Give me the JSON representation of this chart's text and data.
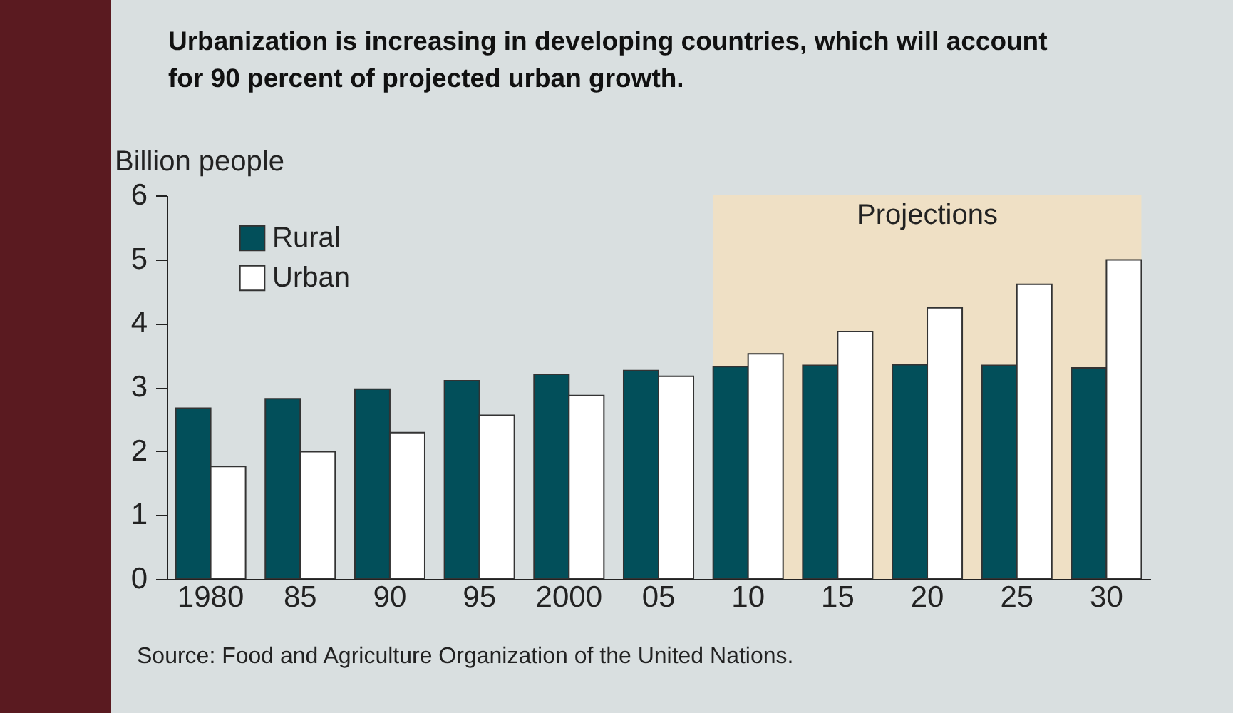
{
  "chart_data": {
    "type": "bar",
    "title": "Urbanization is increasing in developing countries, which will account for 90 percent of projected urban growth.",
    "ylabel": "Billion people",
    "categories": [
      "1980",
      "85",
      "90",
      "95",
      "2000",
      "05",
      "10",
      "15",
      "20",
      "25",
      "30"
    ],
    "series": [
      {
        "name": "Rural",
        "color": "#024f5a",
        "values": [
          2.67,
          2.82,
          2.97,
          3.1,
          3.2,
          3.26,
          3.32,
          3.34,
          3.35,
          3.34,
          3.3
        ]
      },
      {
        "name": "Urban",
        "color": "#ffffff",
        "values": [
          1.76,
          1.99,
          2.29,
          2.56,
          2.87,
          3.17,
          3.52,
          3.87,
          4.24,
          4.61,
          4.99
        ]
      }
    ],
    "ylim": [
      0,
      6
    ],
    "yticks": [
      0,
      1,
      2,
      3,
      4,
      5,
      6
    ],
    "legend": "top left",
    "bands": [
      {
        "axis": "x",
        "from": "10",
        "to": "30",
        "label": "Projections",
        "color": "#efe0c5"
      }
    ],
    "annotations": [
      "Source: Food and Agriculture Organization of the United Nations."
    ]
  }
}
